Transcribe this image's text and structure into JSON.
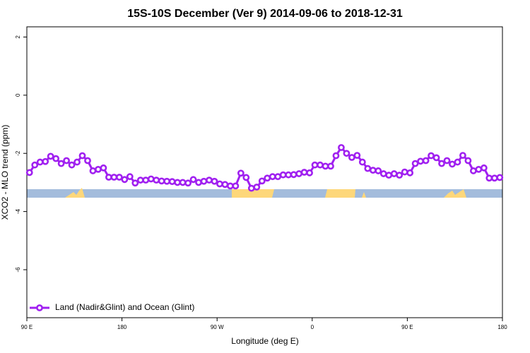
{
  "chart_data": {
    "type": "line",
    "title": "15S-10S December (Ver 9)   2014-09-06 to 2018-12-31",
    "x_label": "Longitude (deg E)",
    "y_label": "XCO2 - MLO trend (ppm)",
    "x": [
      92.5,
      97.5,
      102.5,
      107.5,
      112.5,
      117.5,
      122.5,
      127.5,
      132.5,
      137.5,
      142.5,
      147.5,
      152.5,
      157.5,
      162.5,
      167.5,
      172.5,
      177.5,
      182.5,
      187.5,
      192.5,
      197.5,
      202.5,
      207.5,
      212.5,
      217.5,
      222.5,
      227.5,
      232.5,
      237.5,
      242.5,
      247.5,
      252.5,
      257.5,
      262.5,
      267.5,
      272.5,
      277.5,
      282.5,
      287.5,
      292.5,
      297.5,
      302.5,
      307.5,
      312.5,
      317.5,
      322.5,
      327.5,
      332.5,
      337.5,
      342.5,
      347.5,
      352.5,
      357.5,
      362.5,
      367.5,
      372.5,
      377.5,
      382.5,
      387.5,
      392.5,
      397.5,
      402.5,
      407.5,
      412.5,
      417.5,
      422.5,
      427.5,
      432.5,
      437.5,
      442.5,
      447.5,
      452.5,
      457.5,
      462.5,
      467.5,
      472.5,
      477.5,
      482.5,
      487.5,
      492.5,
      497.5,
      502.5,
      507.5,
      512.5,
      517.5,
      522.5,
      527.5,
      532.5,
      537.5
    ],
    "series": [
      {
        "name": "Land (Nadir&Glint) and Ocean (Glint)",
        "color": "#a020f0",
        "values": [
          -2.66,
          -2.4,
          -2.3,
          -2.28,
          -2.1,
          -2.18,
          -2.35,
          -2.25,
          -2.4,
          -2.3,
          -2.08,
          -2.25,
          -2.6,
          -2.55,
          -2.5,
          -2.82,
          -2.82,
          -2.82,
          -2.9,
          -2.8,
          -3.02,
          -2.92,
          -2.92,
          -2.88,
          -2.92,
          -2.95,
          -2.96,
          -2.97,
          -3.0,
          -3.0,
          -3.02,
          -2.9,
          -3.0,
          -2.96,
          -2.92,
          -2.96,
          -3.05,
          -3.07,
          -3.12,
          -3.12,
          -2.68,
          -2.83,
          -3.2,
          -3.16,
          -2.95,
          -2.85,
          -2.8,
          -2.8,
          -2.74,
          -2.74,
          -2.73,
          -2.7,
          -2.65,
          -2.67,
          -2.4,
          -2.4,
          -2.44,
          -2.44,
          -2.08,
          -1.8,
          -2.0,
          -2.14,
          -2.07,
          -2.3,
          -2.52,
          -2.58,
          -2.6,
          -2.7,
          -2.75,
          -2.7,
          -2.75,
          -2.64,
          -2.67,
          -2.35,
          -2.27,
          -2.25,
          -2.08,
          -2.15,
          -2.35,
          -2.25,
          -2.37,
          -2.3,
          -2.07,
          -2.25,
          -2.6,
          -2.55,
          -2.5,
          -2.85,
          -2.85,
          -2.83
        ]
      }
    ],
    "xlim": [
      90,
      540
    ],
    "xticks": [
      {
        "value": 90,
        "label": "90 E"
      },
      180,
      {
        "value": 270,
        "label": "90 W"
      },
      {
        "value": 360,
        "label": "0"
      },
      {
        "value": 450,
        "label": "90 E"
      },
      {
        "value": 540,
        "label": "180"
      }
    ],
    "ylim": [
      -7.65,
      2.35
    ],
    "yticks": [
      2,
      0,
      -2,
      -4,
      -6
    ],
    "legend": "bottom-left"
  }
}
